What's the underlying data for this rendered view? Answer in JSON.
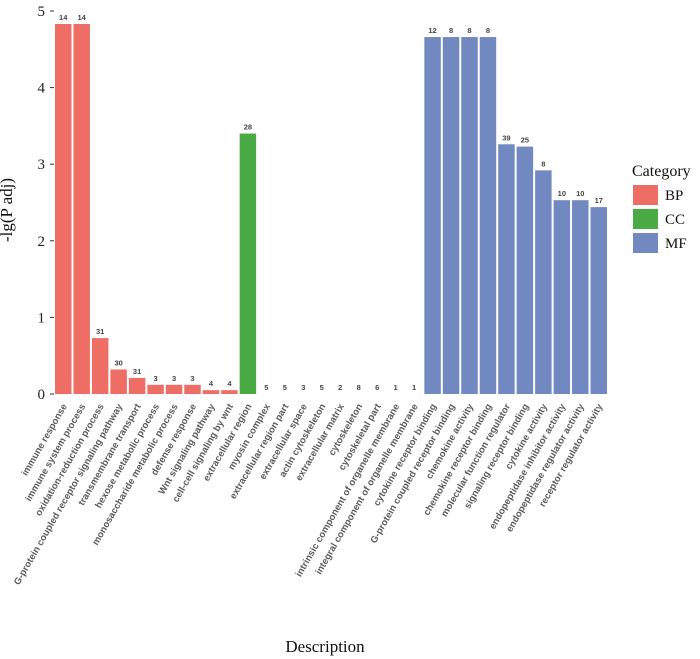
{
  "chart_data": {
    "type": "bar",
    "xlabel": "Description",
    "ylabel": "-lg(P adj)",
    "ylim": [
      0,
      5
    ],
    "yticks": [
      "0",
      "1",
      "2",
      "3",
      "4",
      "5"
    ],
    "legend": {
      "title": "Category",
      "position": "right",
      "entries": [
        {
          "name": "BP",
          "color": "#ee6e65"
        },
        {
          "name": "CC",
          "color": "#4aab45"
        },
        {
          "name": "MF",
          "color": "#7189c0"
        }
      ]
    },
    "bars": [
      {
        "category": "immune response",
        "group": "BP",
        "value": 4.83,
        "count": "14"
      },
      {
        "category": "immune system process",
        "group": "BP",
        "value": 4.83,
        "count": "14"
      },
      {
        "category": "oxidation-reduction process",
        "group": "BP",
        "value": 0.73,
        "count": "31"
      },
      {
        "category": "G-protein coupled receptor signaling pathway",
        "group": "BP",
        "value": 0.32,
        "count": "30"
      },
      {
        "category": "transmembrane transport",
        "group": "BP",
        "value": 0.21,
        "count": "31"
      },
      {
        "category": "hexose metabolic process",
        "group": "BP",
        "value": 0.12,
        "count": "3"
      },
      {
        "category": "monosaccharide metabolic process",
        "group": "BP",
        "value": 0.12,
        "count": "3"
      },
      {
        "category": "defense response",
        "group": "BP",
        "value": 0.12,
        "count": "3"
      },
      {
        "category": "Wnt signaling pathway",
        "group": "BP",
        "value": 0.05,
        "count": "4"
      },
      {
        "category": "cell-cell signaling by wnt",
        "group": "BP",
        "value": 0.05,
        "count": "4"
      },
      {
        "category": "extracellular region",
        "group": "CC",
        "value": 3.4,
        "count": "28"
      },
      {
        "category": "myosin complex",
        "group": "CC",
        "value": 0,
        "count": "5"
      },
      {
        "category": "extracellular region part",
        "group": "CC",
        "value": 0,
        "count": "5"
      },
      {
        "category": "extracellular space",
        "group": "CC",
        "value": 0,
        "count": "3"
      },
      {
        "category": "actin cytoskeleton",
        "group": "CC",
        "value": 0,
        "count": "5"
      },
      {
        "category": "extracellular matrix",
        "group": "CC",
        "value": 0,
        "count": "2"
      },
      {
        "category": "cytoskeleton",
        "group": "CC",
        "value": 0,
        "count": "8"
      },
      {
        "category": "cytoskeletal part",
        "group": "CC",
        "value": 0,
        "count": "6"
      },
      {
        "category": "intrinsic component of organelle membrane",
        "group": "CC",
        "value": 0,
        "count": "1"
      },
      {
        "category": "integral component of organelle membrane",
        "group": "CC",
        "value": 0,
        "count": "1"
      },
      {
        "category": "cytokine receptor binding",
        "group": "MF",
        "value": 4.66,
        "count": "12"
      },
      {
        "category": "G-protein coupled receptor binding",
        "group": "MF",
        "value": 4.66,
        "count": "8"
      },
      {
        "category": "chemokine activity",
        "group": "MF",
        "value": 4.66,
        "count": "8"
      },
      {
        "category": "chemokine receptor binding",
        "group": "MF",
        "value": 4.66,
        "count": "8"
      },
      {
        "category": "molecular function regulator",
        "group": "MF",
        "value": 3.26,
        "count": "39"
      },
      {
        "category": "signaling receptor binding",
        "group": "MF",
        "value": 3.23,
        "count": "25"
      },
      {
        "category": "cytokine activity",
        "group": "MF",
        "value": 2.92,
        "count": "8"
      },
      {
        "category": "endopeptidase inhibitor activity",
        "group": "MF",
        "value": 2.53,
        "count": "10"
      },
      {
        "category": "endopeptidase regulator activity",
        "group": "MF",
        "value": 2.53,
        "count": "10"
      },
      {
        "category": "receptor regulator activity",
        "group": "MF",
        "value": 2.44,
        "count": "17"
      }
    ]
  }
}
